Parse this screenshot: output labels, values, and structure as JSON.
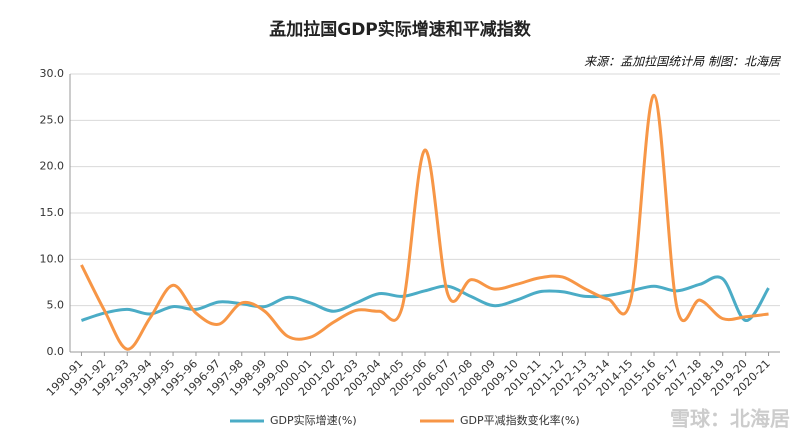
{
  "chart_data": {
    "type": "line",
    "title": "孟加拉国GDP实际增速和平减指数",
    "annotation": "来源：孟加拉国统计局 制图：北海居",
    "watermark": "雪球：北海居",
    "categories": [
      "1990-91",
      "1991-92",
      "1992-93",
      "1993-94",
      "1994-95",
      "1995-96",
      "1996-97",
      "1997-98",
      "1998-99",
      "1999-00",
      "2000-01",
      "2001-02",
      "2002-03",
      "2003-04",
      "2004-05",
      "2005-06",
      "2006-07",
      "2007-08",
      "2008-09",
      "2009-10",
      "2010-11",
      "2011-12",
      "2012-13",
      "2013-14",
      "2014-15",
      "2015-16",
      "2016-17",
      "2017-18",
      "2018-19",
      "2019-20",
      "2020-21"
    ],
    "series": [
      {
        "name": "GDP实际增速(%)",
        "color": "#4bacc6",
        "values": [
          3.4,
          4.2,
          4.6,
          4.1,
          4.9,
          4.6,
          5.4,
          5.2,
          4.9,
          5.9,
          5.3,
          4.4,
          5.3,
          6.3,
          6.0,
          6.6,
          7.1,
          6.0,
          5.0,
          5.6,
          6.5,
          6.5,
          6.0,
          6.1,
          6.6,
          7.1,
          6.6,
          7.3,
          7.9,
          3.4,
          6.9
        ]
      },
      {
        "name": "GDP平减指数变化率(%)",
        "color": "#f79646",
        "values": [
          9.4,
          4.5,
          0.3,
          3.7,
          7.2,
          4.2,
          3.0,
          5.3,
          4.4,
          1.7,
          1.6,
          3.2,
          4.5,
          4.4,
          4.8,
          21.8,
          6.2,
          7.8,
          6.8,
          7.3,
          8.0,
          8.1,
          6.8,
          5.7,
          5.8,
          27.7,
          4.8,
          5.6,
          3.6,
          3.8,
          4.1
        ]
      }
    ],
    "ylim": [
      0,
      30
    ],
    "yticks": [
      {
        "value": 0,
        "label": "0.0"
      },
      {
        "value": 5,
        "label": "5.0"
      },
      {
        "value": 10,
        "label": "10.0"
      },
      {
        "value": 15,
        "label": "15.0"
      },
      {
        "value": 20,
        "label": "20.0"
      },
      {
        "value": 25,
        "label": "25.0"
      },
      {
        "value": 30,
        "label": "30.0"
      }
    ],
    "grid": true
  }
}
